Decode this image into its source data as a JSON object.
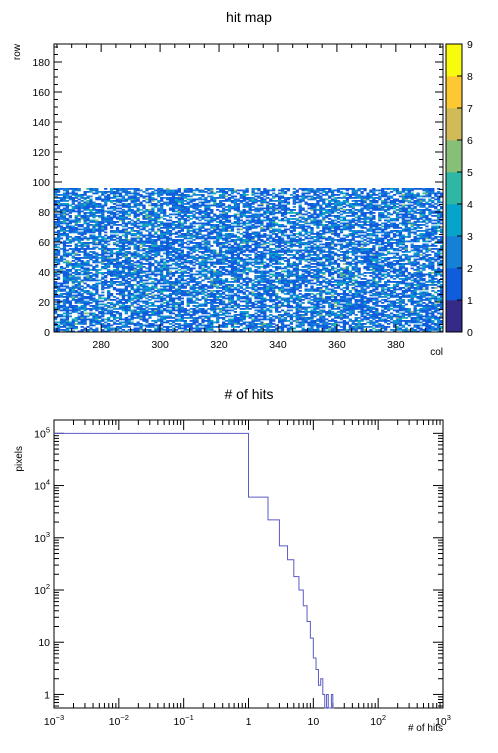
{
  "chart_data": [
    {
      "type": "heatmap",
      "title": "hit map",
      "xlabel": "col",
      "ylabel": "row",
      "xlim": [
        264,
        396
      ],
      "ylim": [
        0,
        192
      ],
      "xticks": [
        280,
        300,
        320,
        340,
        360,
        380
      ],
      "yticks": [
        0,
        20,
        40,
        60,
        80,
        100,
        120,
        140,
        160,
        180
      ],
      "filled_region": {
        "col_range": [
          264,
          395
        ],
        "row_range": [
          0,
          95
        ]
      },
      "zlim": [
        0,
        9
      ],
      "zticks": [
        0,
        1,
        2,
        3,
        4,
        5,
        6,
        7,
        8,
        9
      ],
      "palette": [
        "#352a87",
        "#0f5cdd",
        "#1481d6",
        "#06a4ca",
        "#2eb7a4",
        "#87bf77",
        "#d1bb59",
        "#fec832",
        "#f9fb0e"
      ],
      "empty_color": "#ffffff"
    },
    {
      "type": "line",
      "title": "# of hits",
      "xlabel": "# of hits",
      "ylabel": "pixels",
      "xscale": "log",
      "yscale": "log",
      "xlim": [
        0.001,
        1000
      ],
      "ylim": [
        0.55,
        180000
      ],
      "xticks": [
        {
          "value": 0.001,
          "base": "10",
          "exp": "−3"
        },
        {
          "value": 0.01,
          "base": "10",
          "exp": "−2"
        },
        {
          "value": 0.1,
          "base": "10",
          "exp": "−1"
        },
        {
          "value": 1,
          "base": "1",
          "exp": ""
        },
        {
          "value": 10,
          "base": "10",
          "exp": ""
        },
        {
          "value": 100,
          "base": "10",
          "exp": "2"
        },
        {
          "value": 1000,
          "base": "10",
          "exp": "3"
        }
      ],
      "yticks": [
        {
          "value": 1,
          "base": "1",
          "exp": ""
        },
        {
          "value": 10,
          "base": "10",
          "exp": ""
        },
        {
          "value": 100,
          "base": "10",
          "exp": "2"
        },
        {
          "value": 1000,
          "base": "10",
          "exp": "3"
        },
        {
          "value": 10000,
          "base": "10",
          "exp": "4"
        },
        {
          "value": 100000,
          "base": "10",
          "exp": "5"
        }
      ],
      "line_color": "#5b5bc8",
      "bins": [
        {
          "x0": 0.001,
          "x1": 1,
          "y": 100000
        },
        {
          "x0": 1,
          "x1": 2,
          "y": 6000
        },
        {
          "x0": 2,
          "x1": 3,
          "y": 2200
        },
        {
          "x0": 3,
          "x1": 4,
          "y": 700
        },
        {
          "x0": 4,
          "x1": 5,
          "y": 380
        },
        {
          "x0": 5,
          "x1": 6,
          "y": 180
        },
        {
          "x0": 6,
          "x1": 7,
          "y": 100
        },
        {
          "x0": 7,
          "x1": 8,
          "y": 50
        },
        {
          "x0": 8,
          "x1": 9,
          "y": 25
        },
        {
          "x0": 9,
          "x1": 10,
          "y": 12
        },
        {
          "x0": 10,
          "x1": 11,
          "y": 5
        },
        {
          "x0": 11,
          "x1": 12,
          "y": 3
        },
        {
          "x0": 12,
          "x1": 13,
          "y": 1.5
        },
        {
          "x0": 13,
          "x1": 14,
          "y": 2
        },
        {
          "x0": 14,
          "x1": 15,
          "y": 1
        },
        {
          "x0": 15,
          "x1": 16,
          "y": 0.55
        },
        {
          "x0": 16,
          "x1": 17,
          "y": 1
        },
        {
          "x0": 17,
          "x1": 18,
          "y": 0.55
        },
        {
          "x0": 18,
          "x1": 19,
          "y": 0.55
        },
        {
          "x0": 19,
          "x1": 20,
          "y": 1
        },
        {
          "x0": 20,
          "x1": 21,
          "y": 0.55
        }
      ]
    }
  ]
}
